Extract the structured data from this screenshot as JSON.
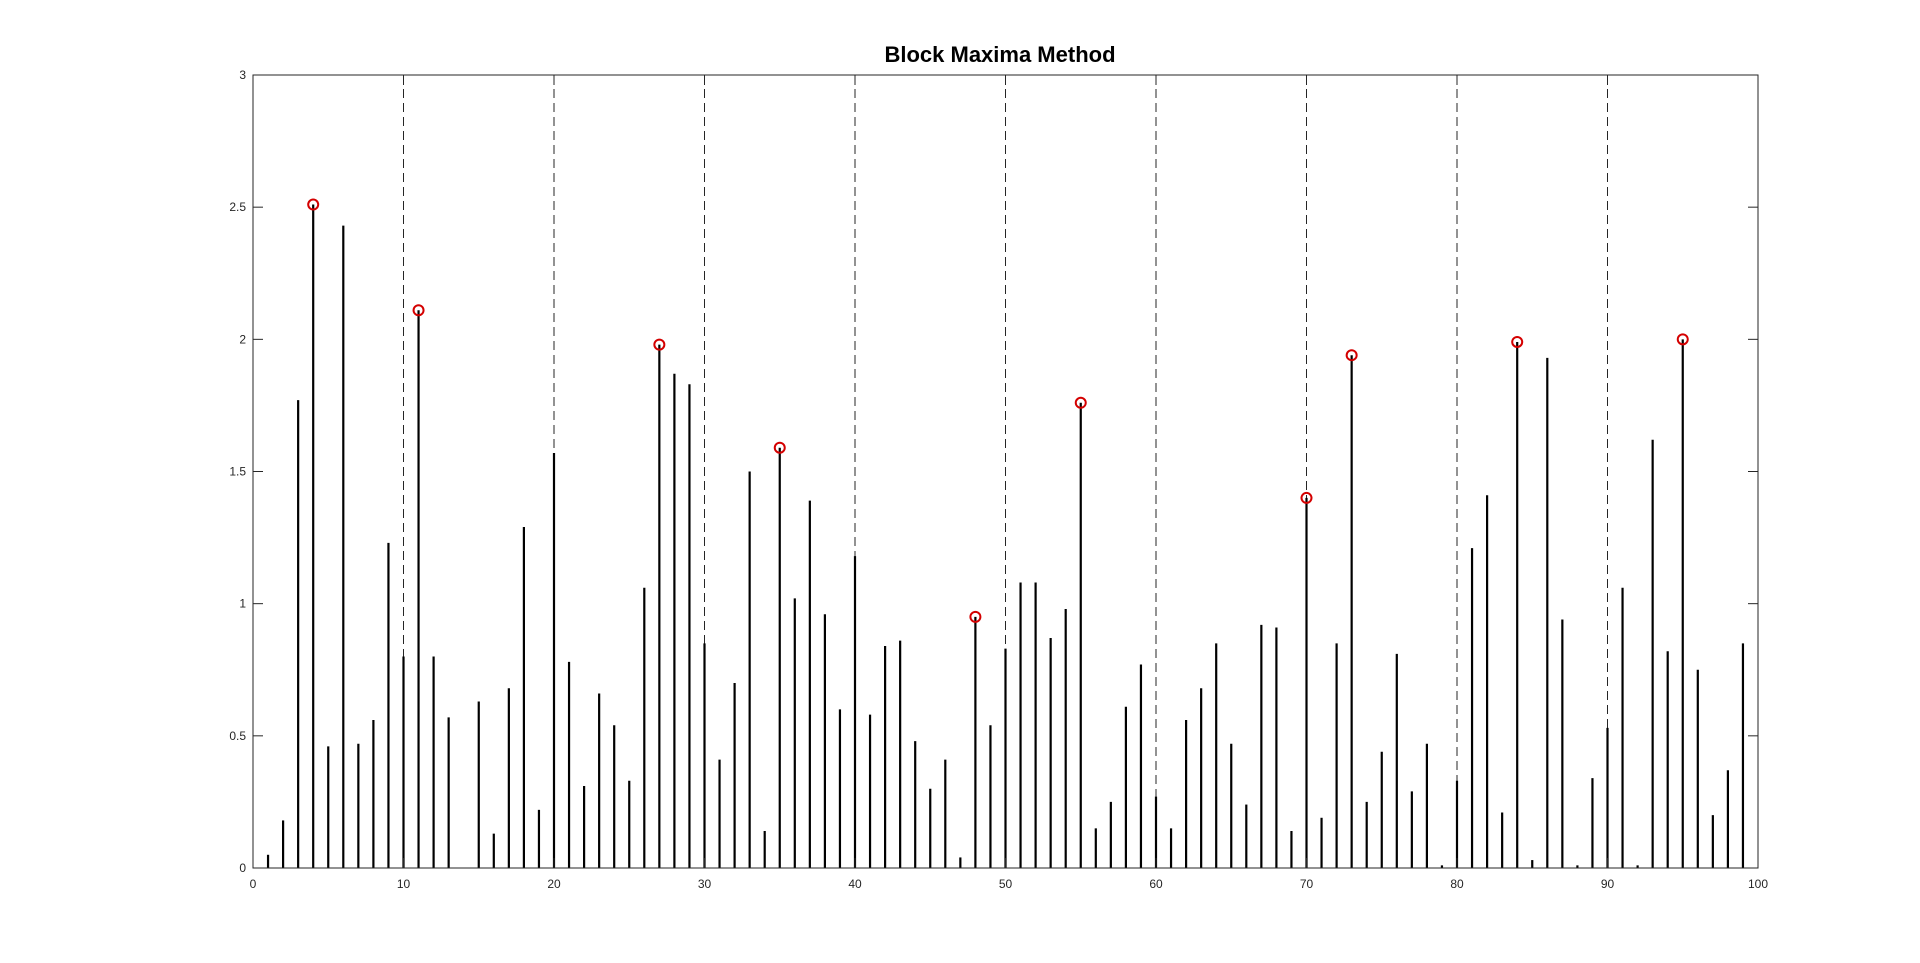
{
  "chart_data": {
    "type": "stem",
    "title": "Block Maxima Method",
    "xlabel": "",
    "ylabel": "",
    "xlim": [
      0,
      100
    ],
    "ylim": [
      0,
      3
    ],
    "x_ticks": [
      "0",
      "10",
      "20",
      "30",
      "40",
      "50",
      "60",
      "70",
      "80",
      "90",
      "100"
    ],
    "y_ticks": [
      "0",
      "0.5",
      "1",
      "1.5",
      "2",
      "2.5",
      "3"
    ],
    "block_boundaries": [
      10,
      20,
      30,
      40,
      50,
      60,
      70,
      80,
      90
    ],
    "series": [
      {
        "x": [
          1,
          2,
          3,
          4,
          5,
          6,
          7,
          8,
          9,
          10,
          11,
          12,
          13,
          14,
          15,
          16,
          17,
          18,
          19,
          20,
          21,
          22,
          23,
          24,
          25,
          26,
          27,
          28,
          29,
          30,
          31,
          32,
          33,
          34,
          35,
          36,
          37,
          38,
          39,
          40,
          41,
          42,
          43,
          44,
          45,
          46,
          47,
          48,
          49,
          50,
          51,
          52,
          53,
          54,
          55,
          56,
          57,
          58,
          59,
          60,
          61,
          62,
          63,
          64,
          65,
          66,
          67,
          68,
          69,
          70,
          71,
          72,
          73,
          74,
          75,
          76,
          77,
          78,
          79,
          80,
          81,
          82,
          83,
          84,
          85,
          86,
          87,
          88,
          89,
          90,
          91,
          92,
          93,
          94,
          95,
          96,
          97,
          98,
          99
        ],
        "values": [
          0.05,
          0.18,
          1.77,
          2.51,
          0.46,
          2.43,
          0.47,
          0.56,
          1.23,
          0.8,
          2.11,
          0.8,
          0.57,
          0.0,
          0.63,
          0.13,
          0.68,
          1.29,
          0.22,
          1.57,
          0.78,
          0.31,
          0.66,
          0.54,
          0.33,
          1.06,
          1.98,
          1.87,
          1.83,
          0.85,
          0.41,
          0.7,
          1.5,
          0.14,
          1.59,
          1.02,
          1.39,
          0.96,
          0.6,
          1.18,
          0.58,
          0.84,
          0.86,
          0.48,
          0.3,
          0.41,
          0.04,
          0.95,
          0.54,
          0.83,
          1.08,
          1.08,
          0.87,
          0.98,
          1.76,
          0.15,
          0.25,
          0.61,
          0.77,
          0.27,
          0.15,
          0.56,
          0.68,
          0.85,
          0.47,
          0.24,
          0.92,
          0.91,
          0.14,
          1.4,
          0.19,
          0.85,
          1.94,
          0.25,
          0.44,
          0.81,
          0.29,
          0.47,
          0.01,
          0.33,
          1.21,
          1.41,
          0.21,
          1.99,
          0.03,
          1.93,
          0.94,
          0.01,
          0.34,
          0.53,
          1.06,
          0.01,
          1.62,
          0.82,
          2.0,
          0.75,
          0.2,
          0.37,
          0.85
        ]
      }
    ],
    "maxima": {
      "x": [
        4,
        11,
        27,
        35,
        48,
        55,
        70,
        73,
        84,
        95
      ],
      "values": [
        2.51,
        2.11,
        1.98,
        1.59,
        0.95,
        1.76,
        1.4,
        1.94,
        1.99,
        2.0
      ]
    },
    "colors": {
      "stem": "#000000",
      "maxima_marker": "#d40000",
      "axis": "#262626"
    },
    "grid": false,
    "legend": "none"
  }
}
